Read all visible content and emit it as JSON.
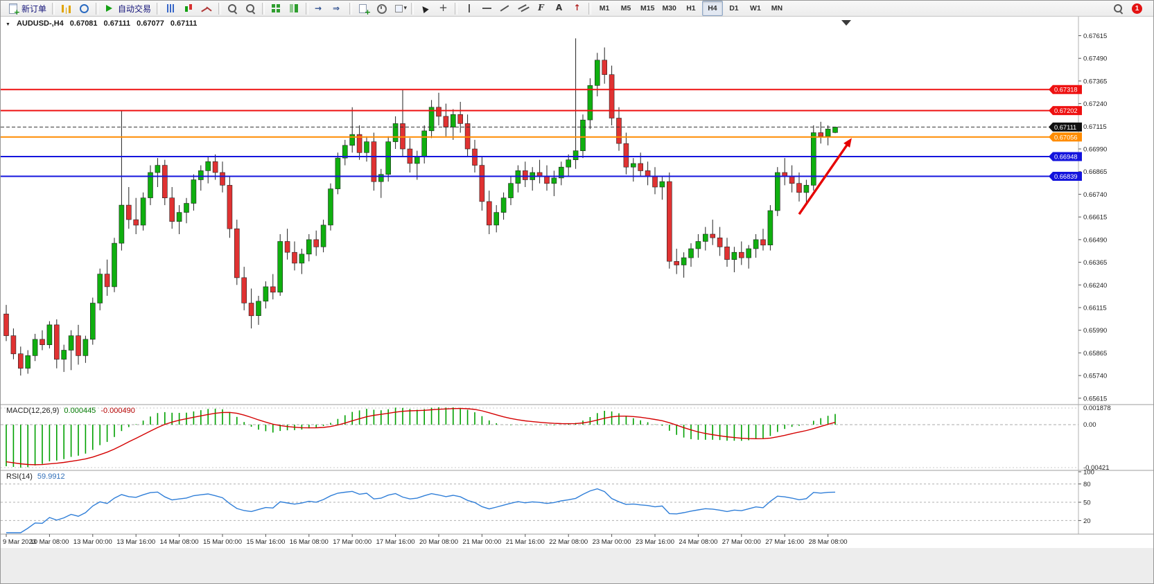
{
  "toolbar": {
    "badge": "1",
    "groups": [
      {
        "items": [
          {
            "name": "new-order-button",
            "icon": "i-neworder",
            "label": "新订单"
          }
        ]
      },
      {
        "items": [
          {
            "name": "market-watch-button",
            "icon": "i-mw"
          },
          {
            "name": "navigator-button",
            "icon": "i-nav"
          }
        ]
      },
      {
        "items": [
          {
            "name": "autotrade-button",
            "icon": "i-play",
            "label": "自动交易"
          }
        ]
      },
      {
        "items": [
          {
            "name": "bar-chart-button",
            "icon": "i-ohlc"
          },
          {
            "name": "candlestick-chart-button",
            "icon": "i-candle"
          },
          {
            "name": "line-chart-button",
            "icon": "i-linechart"
          }
        ]
      },
      {
        "items": [
          {
            "name": "zoom-in-button",
            "icon": "i-zoomin"
          },
          {
            "name": "zoom-out-button",
            "icon": "i-zoomout"
          }
        ]
      },
      {
        "items": [
          {
            "name": "tile-windows-button",
            "icon": "i-grid"
          },
          {
            "name": "arrange-windows-button",
            "icon": "i-grid2"
          }
        ]
      },
      {
        "items": [
          {
            "name": "auto-scroll-button",
            "icon": "i-ascroll"
          },
          {
            "name": "chart-shift-button",
            "icon": "i-shift"
          }
        ]
      },
      {
        "items": [
          {
            "name": "new-chart-button",
            "icon": "i-newchart"
          },
          {
            "name": "period-button",
            "icon": "i-clock"
          },
          {
            "name": "template-button",
            "icon": "i-template"
          }
        ]
      },
      {
        "items": [
          {
            "name": "cursor-button",
            "icon": "i-cursor"
          },
          {
            "name": "crosshair-button",
            "icon": "i-cross"
          }
        ]
      },
      {
        "items": [
          {
            "name": "vertical-line-button",
            "icon": "i-vline"
          },
          {
            "name": "horizontal-line-button",
            "icon": "i-hline"
          },
          {
            "name": "trendline-button",
            "icon": "i-tline"
          },
          {
            "name": "channel-button",
            "icon": "i-chan"
          },
          {
            "name": "fibonacci-button",
            "icon": "i-fibo"
          },
          {
            "name": "text-button",
            "icon": "i-text"
          },
          {
            "name": "arrow-tool-button",
            "icon": "i-arrowt"
          }
        ]
      },
      {
        "items": [
          {
            "name": "tf-m1-button",
            "label": "M1",
            "tf": true
          },
          {
            "name": "tf-m5-button",
            "label": "M5",
            "tf": true
          },
          {
            "name": "tf-m15-button",
            "label": "M15",
            "tf": true
          },
          {
            "name": "tf-m30-button",
            "label": "M30",
            "tf": true
          },
          {
            "name": "tf-h1-button",
            "label": "H1",
            "tf": true
          },
          {
            "name": "tf-h4-button",
            "label": "H4",
            "tf": true,
            "active": true
          },
          {
            "name": "tf-d1-button",
            "label": "D1",
            "tf": true
          },
          {
            "name": "tf-w1-button",
            "label": "W1",
            "tf": true
          },
          {
            "name": "tf-mn-button",
            "label": "MN",
            "tf": true
          }
        ]
      }
    ],
    "right": [
      {
        "name": "search-button",
        "icon": "i-search"
      }
    ]
  },
  "chart": {
    "title": {
      "symbol_period": "AUDUSD-,H4",
      "open": "0.67081",
      "high": "0.67111",
      "low": "0.67077",
      "close": "0.67111"
    }
  },
  "chart_data": {
    "type": "candlestick",
    "symbol": "AUDUSD-",
    "timeframe": "H4",
    "colors": {
      "bull": "#0faf0f",
      "bear": "#e03232",
      "wick": "#222222",
      "macd_hist": "#00a000",
      "macd_signal": "#d40000",
      "rsi_line": "#2f7ed8"
    },
    "y_axis": {
      "max": 0.6772,
      "min": 0.6558,
      "ticks": [
        "0.67615",
        "0.67490",
        "0.67365",
        "0.67240",
        "0.67115",
        "0.66990",
        "0.66865",
        "0.66740",
        "0.66615",
        "0.66490",
        "0.66365",
        "0.66240",
        "0.66115",
        "0.65990",
        "0.65865",
        "0.65740",
        "0.65615"
      ]
    },
    "x_labels": [
      "9 Mar 2023",
      "10 Mar 08:00",
      "13 Mar 00:00",
      "13 Mar 16:00",
      "14 Mar 08:00",
      "15 Mar 00:00",
      "15 Mar 16:00",
      "16 Mar 08:00",
      "17 Mar 00:00",
      "17 Mar 16:00",
      "20 Mar 08:00",
      "21 Mar 00:00",
      "21 Mar 16:00",
      "22 Mar 08:00",
      "23 Mar 00:00",
      "23 Mar 16:00",
      "24 Mar 08:00",
      "27 Mar 00:00",
      "27 Mar 16:00",
      "28 Mar 08:00"
    ],
    "labels_every": 6,
    "hlines": [
      {
        "price": 0.67318,
        "label": "0.67318",
        "color": "#ee1111"
      },
      {
        "price": 0.67202,
        "label": "0.67202",
        "color": "#ee1111"
      },
      {
        "price": 0.67056,
        "label": "0.67056",
        "color": "#ff8c00"
      },
      {
        "price": 0.66948,
        "label": "0.66948",
        "color": "#1414dd"
      },
      {
        "price": 0.66839,
        "label": "0.66839",
        "color": "#1414dd"
      }
    ],
    "price_line": {
      "price": 0.67111,
      "label": "0.67111",
      "color": "#111111"
    },
    "arrow": {
      "from": {
        "bar": 110,
        "price": 0.6663
      },
      "to": {
        "bar": 117.3,
        "price": 0.6705
      },
      "color": "#e60000",
      "width": 3.4
    },
    "indicator_warmup": {
      "start": 0.6768,
      "bars": 26
    },
    "macd": {
      "name": "MACD(12,26,9)",
      "value_main": "0.000445",
      "value_signal": "-0.000490",
      "fast": 12,
      "slow": 26,
      "signal": 9,
      "axis_labels": [
        "0.001878",
        "0.00",
        "-0.00421"
      ]
    },
    "rsi": {
      "name": "RSI(14)",
      "value": "59.9912",
      "period": 14,
      "axis_labels": [
        {
          "v": 100,
          "t": "100"
        },
        {
          "v": 80,
          "t": "80"
        },
        {
          "v": 50,
          "t": "50"
        },
        {
          "v": 20,
          "t": "20"
        }
      ],
      "levels": [
        80,
        50,
        20
      ]
    },
    "candles": [
      [
        0.6608,
        0.6613,
        0.6593,
        0.6596
      ],
      [
        0.6596,
        0.66,
        0.6583,
        0.6586
      ],
      [
        0.6586,
        0.659,
        0.6574,
        0.6578
      ],
      [
        0.6578,
        0.6588,
        0.6575,
        0.6585
      ],
      [
        0.6585,
        0.6597,
        0.6582,
        0.6594
      ],
      [
        0.6594,
        0.6599,
        0.6588,
        0.6591
      ],
      [
        0.6591,
        0.6604,
        0.6589,
        0.6602
      ],
      [
        0.6602,
        0.6605,
        0.6578,
        0.6583
      ],
      [
        0.6583,
        0.6591,
        0.6576,
        0.6588
      ],
      [
        0.6588,
        0.6599,
        0.6577,
        0.6596
      ],
      [
        0.6596,
        0.6602,
        0.658,
        0.6585
      ],
      [
        0.6585,
        0.6596,
        0.6581,
        0.6594
      ],
      [
        0.6594,
        0.6617,
        0.6591,
        0.6614
      ],
      [
        0.6614,
        0.6633,
        0.661,
        0.663
      ],
      [
        0.663,
        0.6638,
        0.6618,
        0.6623
      ],
      [
        0.6623,
        0.665,
        0.662,
        0.6647
      ],
      [
        0.6647,
        0.672,
        0.6643,
        0.6668
      ],
      [
        0.6668,
        0.6678,
        0.6655,
        0.666
      ],
      [
        0.666,
        0.6672,
        0.6652,
        0.6657
      ],
      [
        0.6657,
        0.6675,
        0.6654,
        0.6672
      ],
      [
        0.6672,
        0.669,
        0.6668,
        0.6686
      ],
      [
        0.6686,
        0.6694,
        0.6678,
        0.669
      ],
      [
        0.669,
        0.6693,
        0.6668,
        0.6672
      ],
      [
        0.6672,
        0.6678,
        0.6655,
        0.6659
      ],
      [
        0.6659,
        0.6668,
        0.6652,
        0.6664
      ],
      [
        0.6664,
        0.6672,
        0.6658,
        0.6669
      ],
      [
        0.6669,
        0.6685,
        0.6665,
        0.6682
      ],
      [
        0.6682,
        0.669,
        0.6676,
        0.6687
      ],
      [
        0.6687,
        0.6695,
        0.668,
        0.6692
      ],
      [
        0.6692,
        0.6696,
        0.6682,
        0.6686
      ],
      [
        0.6686,
        0.6692,
        0.6675,
        0.6679
      ],
      [
        0.6679,
        0.6684,
        0.665,
        0.6655
      ],
      [
        0.6655,
        0.666,
        0.6624,
        0.6628
      ],
      [
        0.6628,
        0.6634,
        0.661,
        0.6614
      ],
      [
        0.6614,
        0.6622,
        0.66,
        0.6607
      ],
      [
        0.6607,
        0.6618,
        0.6602,
        0.6615
      ],
      [
        0.6615,
        0.6626,
        0.6611,
        0.6623
      ],
      [
        0.6623,
        0.663,
        0.6616,
        0.662
      ],
      [
        0.662,
        0.6652,
        0.6618,
        0.6648
      ],
      [
        0.6648,
        0.6655,
        0.6638,
        0.6642
      ],
      [
        0.6642,
        0.6648,
        0.6632,
        0.6636
      ],
      [
        0.6636,
        0.6644,
        0.663,
        0.6641
      ],
      [
        0.6641,
        0.6652,
        0.6637,
        0.6649
      ],
      [
        0.6649,
        0.6654,
        0.664,
        0.6645
      ],
      [
        0.6645,
        0.666,
        0.6642,
        0.6657
      ],
      [
        0.6657,
        0.668,
        0.6654,
        0.6677
      ],
      [
        0.6677,
        0.6697,
        0.6674,
        0.6694
      ],
      [
        0.6694,
        0.6704,
        0.669,
        0.6701
      ],
      [
        0.6701,
        0.6722,
        0.6697,
        0.6707
      ],
      [
        0.6707,
        0.6712,
        0.6693,
        0.6697
      ],
      [
        0.6697,
        0.6706,
        0.6692,
        0.6703
      ],
      [
        0.6703,
        0.6708,
        0.6676,
        0.6681
      ],
      [
        0.6681,
        0.6688,
        0.6672,
        0.6685
      ],
      [
        0.6685,
        0.6706,
        0.6681,
        0.6703
      ],
      [
        0.6703,
        0.6717,
        0.6699,
        0.6713
      ],
      [
        0.6713,
        0.6732,
        0.6695,
        0.6699
      ],
      [
        0.6699,
        0.6705,
        0.6686,
        0.6691
      ],
      [
        0.6691,
        0.6698,
        0.6682,
        0.6695
      ],
      [
        0.6695,
        0.6712,
        0.6691,
        0.6709
      ],
      [
        0.6709,
        0.6726,
        0.6705,
        0.6722
      ],
      [
        0.6722,
        0.673,
        0.6712,
        0.6717
      ],
      [
        0.6717,
        0.6724,
        0.6706,
        0.6711
      ],
      [
        0.6711,
        0.6721,
        0.6704,
        0.6718
      ],
      [
        0.6718,
        0.6725,
        0.6708,
        0.6713
      ],
      [
        0.6713,
        0.6718,
        0.6695,
        0.6699
      ],
      [
        0.6699,
        0.6704,
        0.6686,
        0.669
      ],
      [
        0.669,
        0.6695,
        0.6665,
        0.667
      ],
      [
        0.667,
        0.6676,
        0.6652,
        0.6657
      ],
      [
        0.6657,
        0.6668,
        0.6653,
        0.6664
      ],
      [
        0.6664,
        0.6675,
        0.666,
        0.6672
      ],
      [
        0.6672,
        0.6684,
        0.6668,
        0.668
      ],
      [
        0.668,
        0.669,
        0.6675,
        0.6687
      ],
      [
        0.6687,
        0.6692,
        0.6678,
        0.6682
      ],
      [
        0.6682,
        0.6689,
        0.6676,
        0.6686
      ],
      [
        0.6686,
        0.6693,
        0.668,
        0.6684
      ],
      [
        0.6684,
        0.669,
        0.6676,
        0.668
      ],
      [
        0.668,
        0.6687,
        0.6673,
        0.6683
      ],
      [
        0.6683,
        0.6692,
        0.6679,
        0.6689
      ],
      [
        0.6689,
        0.6696,
        0.6684,
        0.6693
      ],
      [
        0.6693,
        0.676,
        0.6688,
        0.6698
      ],
      [
        0.6698,
        0.6718,
        0.6694,
        0.6715
      ],
      [
        0.6715,
        0.6738,
        0.671,
        0.6734
      ],
      [
        0.6734,
        0.6752,
        0.6728,
        0.6748
      ],
      [
        0.6748,
        0.6755,
        0.6735,
        0.674
      ],
      [
        0.674,
        0.6745,
        0.6712,
        0.6716
      ],
      [
        0.6716,
        0.6722,
        0.6698,
        0.6702
      ],
      [
        0.6702,
        0.6708,
        0.6685,
        0.6689
      ],
      [
        0.6689,
        0.6694,
        0.6681,
        0.6691
      ],
      [
        0.6691,
        0.6697,
        0.6684,
        0.6687
      ],
      [
        0.6687,
        0.6692,
        0.6679,
        0.6684
      ],
      [
        0.6684,
        0.6689,
        0.6674,
        0.6678
      ],
      [
        0.6678,
        0.6684,
        0.6671,
        0.6681
      ],
      [
        0.6681,
        0.6686,
        0.6633,
        0.6637
      ],
      [
        0.6637,
        0.6644,
        0.663,
        0.6635
      ],
      [
        0.6635,
        0.6642,
        0.6628,
        0.6639
      ],
      [
        0.6639,
        0.6647,
        0.6634,
        0.6644
      ],
      [
        0.6644,
        0.6652,
        0.6639,
        0.6648
      ],
      [
        0.6648,
        0.6656,
        0.6643,
        0.6652
      ],
      [
        0.6652,
        0.666,
        0.6646,
        0.665
      ],
      [
        0.665,
        0.6656,
        0.664,
        0.6645
      ],
      [
        0.6645,
        0.665,
        0.6634,
        0.6638
      ],
      [
        0.6638,
        0.6645,
        0.6631,
        0.6642
      ],
      [
        0.6642,
        0.6648,
        0.6635,
        0.6639
      ],
      [
        0.6639,
        0.6646,
        0.6633,
        0.6644
      ],
      [
        0.6644,
        0.6652,
        0.6639,
        0.6649
      ],
      [
        0.6649,
        0.6655,
        0.6643,
        0.6646
      ],
      [
        0.6646,
        0.6668,
        0.6643,
        0.6665
      ],
      [
        0.6665,
        0.6689,
        0.6662,
        0.6686
      ],
      [
        0.6686,
        0.6694,
        0.6679,
        0.6684
      ],
      [
        0.6684,
        0.669,
        0.6675,
        0.668
      ],
      [
        0.668,
        0.6686,
        0.667,
        0.6675
      ],
      [
        0.6675,
        0.6682,
        0.6668,
        0.6679
      ],
      [
        0.6679,
        0.6712,
        0.6676,
        0.6708
      ],
      [
        0.6708,
        0.6714,
        0.6702,
        0.6706
      ],
      [
        0.6706,
        0.6712,
        0.6701,
        0.671
      ],
      [
        0.67081,
        0.67111,
        0.67077,
        0.67111
      ]
    ]
  }
}
